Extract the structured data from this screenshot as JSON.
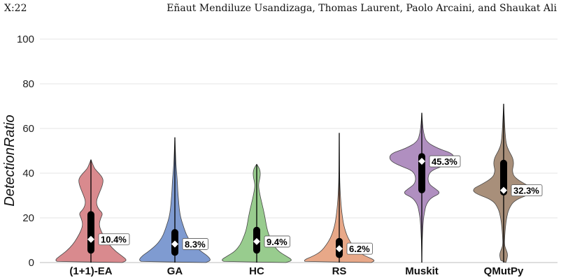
{
  "header": {
    "page_label": "X:22",
    "authors": "Eñaut Mendiluze Usandizaga, Thomas Laurent, Paolo Arcaini, and Shaukat Ali"
  },
  "chart_data": {
    "type": "violin",
    "title": "",
    "xlabel": "",
    "ylabel": "DetectionRatio",
    "ylim": [
      0,
      100
    ],
    "yticks": [
      0,
      20,
      40,
      60,
      80,
      100
    ],
    "grid": true,
    "legend": "none",
    "categories": [
      "(1+1)-EA",
      "GA",
      "HC",
      "RS",
      "Muskit",
      "QMutPy"
    ],
    "series": [
      {
        "category": "(1+1)-EA",
        "color": "#d98a8e",
        "median": 10.4,
        "median_label": "10.4%",
        "q1": 4,
        "q3": 23,
        "whisker_low": 0,
        "whisker_high": 46,
        "density": [
          [
            0,
            0.86
          ],
          [
            1,
            1
          ],
          [
            3,
            0.85
          ],
          [
            5,
            0.68
          ],
          [
            8,
            0.5
          ],
          [
            11,
            0.38
          ],
          [
            14,
            0.28
          ],
          [
            17,
            0.22
          ],
          [
            20,
            0.27
          ],
          [
            22,
            0.33
          ],
          [
            24,
            0.2
          ],
          [
            27,
            0.14
          ],
          [
            30,
            0.2
          ],
          [
            33,
            0.28
          ],
          [
            36,
            0.34
          ],
          [
            38,
            0.32
          ],
          [
            40,
            0.22
          ],
          [
            42,
            0.1
          ],
          [
            44,
            0.05
          ],
          [
            46,
            0
          ]
        ]
      },
      {
        "category": "GA",
        "color": "#7f9bd1",
        "median": 8.3,
        "median_label": "8.3%",
        "q1": 3,
        "q3": 15,
        "whisker_low": 0,
        "whisker_high": 56,
        "density": [
          [
            0,
            0.85
          ],
          [
            1,
            1
          ],
          [
            3,
            0.9
          ],
          [
            5,
            0.72
          ],
          [
            8,
            0.5
          ],
          [
            11,
            0.36
          ],
          [
            14,
            0.28
          ],
          [
            17,
            0.22
          ],
          [
            20,
            0.16
          ],
          [
            24,
            0.12
          ],
          [
            28,
            0.1
          ],
          [
            32,
            0.08
          ],
          [
            36,
            0.07
          ],
          [
            40,
            0.05
          ],
          [
            44,
            0.03
          ],
          [
            48,
            0.02
          ],
          [
            52,
            0.01
          ],
          [
            56,
            0
          ]
        ]
      },
      {
        "category": "HC",
        "color": "#98cc8e",
        "median": 9.4,
        "median_label": "9.4%",
        "q1": 4,
        "q3": 16,
        "whisker_low": 0,
        "whisker_high": 44,
        "density": [
          [
            0,
            0.8
          ],
          [
            1,
            1
          ],
          [
            3,
            0.8
          ],
          [
            5,
            0.6
          ],
          [
            8,
            0.45
          ],
          [
            11,
            0.37
          ],
          [
            14,
            0.3
          ],
          [
            17,
            0.26
          ],
          [
            20,
            0.23
          ],
          [
            24,
            0.18
          ],
          [
            28,
            0.12
          ],
          [
            31,
            0.08
          ],
          [
            34,
            0.05
          ],
          [
            36,
            0.06
          ],
          [
            38,
            0.09
          ],
          [
            40,
            0.1
          ],
          [
            42,
            0.08
          ],
          [
            44,
            0
          ]
        ]
      },
      {
        "category": "RS",
        "color": "#e8a888",
        "median": 6.2,
        "median_label": "6.2%",
        "q1": 2,
        "q3": 11,
        "whisker_low": 0,
        "whisker_high": 58,
        "density": [
          [
            0,
            0.88
          ],
          [
            1,
            1
          ],
          [
            3,
            0.7
          ],
          [
            5,
            0.5
          ],
          [
            8,
            0.35
          ],
          [
            11,
            0.24
          ],
          [
            14,
            0.17
          ],
          [
            17,
            0.12
          ],
          [
            20,
            0.09
          ],
          [
            24,
            0.06
          ],
          [
            28,
            0.04
          ],
          [
            32,
            0.025
          ],
          [
            36,
            0.015
          ],
          [
            40,
            0.01
          ],
          [
            46,
            0.006
          ],
          [
            52,
            0.004
          ],
          [
            58,
            0
          ]
        ]
      },
      {
        "category": "Muskit",
        "color": "#b08fc0",
        "median": 45.3,
        "median_label": "45.3%",
        "q1": 31,
        "q3": 49,
        "whisker_low": 0,
        "whisker_high": 67,
        "density": [
          [
            0,
            0
          ],
          [
            10,
            0.01
          ],
          [
            19,
            0.04
          ],
          [
            23,
            0.08
          ],
          [
            26,
            0.12
          ],
          [
            29,
            0.25
          ],
          [
            31,
            0.52
          ],
          [
            33,
            0.38
          ],
          [
            35,
            0.2
          ],
          [
            38,
            0.16
          ],
          [
            41,
            0.24
          ],
          [
            43,
            0.55
          ],
          [
            45,
            0.82
          ],
          [
            47,
            0.9
          ],
          [
            49,
            0.82
          ],
          [
            51,
            0.45
          ],
          [
            54,
            0.12
          ],
          [
            58,
            0.05
          ],
          [
            62,
            0.02
          ],
          [
            67,
            0
          ]
        ]
      },
      {
        "category": "QMutPy",
        "color": "#a88f7a",
        "median": 32.3,
        "median_label": "32.3%",
        "q1": 30,
        "q3": 46,
        "whisker_low": 0,
        "whisker_high": 71,
        "density": [
          [
            0,
            0.06
          ],
          [
            2,
            0.1
          ],
          [
            4,
            0.11
          ],
          [
            6,
            0.06
          ],
          [
            8,
            0.02
          ],
          [
            12,
            0.03
          ],
          [
            16,
            0.05
          ],
          [
            20,
            0.08
          ],
          [
            24,
            0.14
          ],
          [
            28,
            0.3
          ],
          [
            31,
            0.8
          ],
          [
            33,
            0.85
          ],
          [
            35,
            0.6
          ],
          [
            38,
            0.3
          ],
          [
            41,
            0.23
          ],
          [
            44,
            0.28
          ],
          [
            47,
            0.25
          ],
          [
            50,
            0.14
          ],
          [
            53,
            0.07
          ],
          [
            58,
            0.04
          ],
          [
            64,
            0.02
          ],
          [
            71,
            0
          ]
        ]
      }
    ]
  }
}
